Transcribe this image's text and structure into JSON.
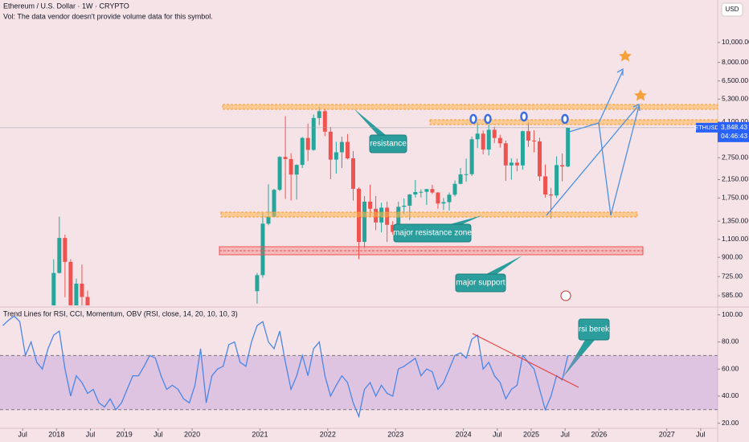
{
  "header": {
    "title": "Ethereum / U.S. Dollar · 1W · CRYPTO",
    "volume_note": "Vol: The data vendor doesn't provide volume data for this symbol.",
    "currency": "USD"
  },
  "chart_data": [
    {
      "type": "candlestick",
      "symbol": "ETHUSD",
      "countdown": "04:46:43",
      "log_scale": true,
      "grid": false,
      "up_color": "#26a69a",
      "down_color": "#ef5350",
      "last_price": {
        "value": 3848.43,
        "label": "3,848.43"
      },
      "x": [
        "2017-12",
        "2018-01",
        "2018-02",
        "2018-03",
        "2018-04",
        "2018-05",
        "2018-06",
        "2020-12",
        "2021-01",
        "2021-02",
        "2021-03",
        "2021-04",
        "2021-05",
        "2021-06",
        "2021-07",
        "2021-08",
        "2021-09",
        "2021-10",
        "2021-11",
        "2021-12",
        "2022-01",
        "2022-02",
        "2022-03",
        "2022-04",
        "2022-05",
        "2022-06",
        "2022-07",
        "2022-08",
        "2022-09",
        "2022-10",
        "2022-11",
        "2022-12",
        "2023-01",
        "2023-02",
        "2023-03",
        "2023-04",
        "2023-05",
        "2023-06",
        "2023-07",
        "2023-08",
        "2023-09",
        "2023-10",
        "2023-11",
        "2023-12",
        "2024-01",
        "2024-02",
        "2024-03",
        "2024-04",
        "2024-05",
        "2024-06",
        "2024-07",
        "2024-08",
        "2024-09",
        "2024-10",
        "2024-11",
        "2024-12",
        "2025-01",
        "2025-02",
        "2025-03",
        "2025-04",
        "2025-05",
        "2025-06",
        "2025-07"
      ],
      "open": [
        440,
        755,
        1118,
        855,
        395,
        670,
        577,
        616,
        737,
        1312,
        1418,
        1918,
        2773,
        2707,
        2275,
        2536,
        3430,
        3000,
        4290,
        4630,
        3680,
        2690,
        2920,
        3280,
        2730,
        1940,
        1070,
        1680,
        1550,
        1330,
        1570,
        1295,
        1195,
        1585,
        1605,
        1820,
        1870,
        1875,
        1935,
        1860,
        1645,
        1670,
        1815,
        2050,
        2280,
        2285,
        3380,
        3600,
        3010,
        3760,
        3430,
        3230,
        2520,
        2600,
        2520,
        3700,
        3330,
        3300,
        2230,
        1820,
        1800,
        2530,
        2490
      ],
      "high": [
        880,
        1420,
        1160,
        880,
        710,
        830,
        620,
        755,
        1475,
        2040,
        1940,
        2800,
        4380,
        2890,
        2550,
        3470,
        4030,
        4460,
        4870,
        4780,
        3880,
        3280,
        3480,
        3580,
        2960,
        1970,
        1790,
        2030,
        1790,
        1660,
        1680,
        1350,
        1680,
        1740,
        1830,
        2140,
        1930,
        1930,
        2030,
        1870,
        1750,
        1860,
        2130,
        2450,
        2720,
        3480,
        4090,
        3730,
        3980,
        3890,
        3560,
        3330,
        2730,
        2720,
        3720,
        4100,
        3740,
        3440,
        2550,
        1960,
        2790,
        2880,
        3860
      ],
      "low": [
        420,
        750,
        575,
        370,
        365,
        520,
        415,
        535,
        715,
        1290,
        1430,
        1890,
        1730,
        1700,
        1720,
        2450,
        2650,
        2970,
        3960,
        3500,
        2160,
        2300,
        2450,
        2700,
        1700,
        880,
        1000,
        1420,
        1220,
        1190,
        1070,
        1160,
        1190,
        1460,
        1370,
        1760,
        1760,
        1620,
        1830,
        1550,
        1530,
        1520,
        1780,
        2040,
        2100,
        2240,
        3060,
        2850,
        2820,
        3240,
        3080,
        2120,
        2150,
        2360,
        2400,
        3100,
        2920,
        2120,
        1760,
        1390,
        1750,
        2110,
        2470
      ],
      "close": [
        755,
        1118,
        855,
        395,
        670,
        577,
        455,
        737,
        1312,
        1418,
        1918,
        2773,
        2707,
        2275,
        2536,
        3430,
        3000,
        4290,
        4630,
        3680,
        2690,
        2920,
        3280,
        2730,
        1940,
        1070,
        1680,
        1550,
        1330,
        1570,
        1295,
        1195,
        1585,
        1605,
        1820,
        1870,
        1875,
        1935,
        1860,
        1645,
        1670,
        1815,
        2050,
        2280,
        2285,
        3380,
        3600,
        3010,
        3760,
        3430,
        3230,
        2520,
        2600,
        2520,
        3700,
        3330,
        3300,
        2230,
        1820,
        1800,
        2530,
        2490,
        3848.43
      ],
      "xlim": [
        "2017-03",
        "2027-10"
      ],
      "xticks": [
        {
          "value": "2017-07",
          "label": "Jul"
        },
        {
          "value": "2018-01",
          "label": "2018"
        },
        {
          "value": "2018-07",
          "label": "Jul"
        },
        {
          "value": "2019-01",
          "label": "2019"
        },
        {
          "value": "2019-07",
          "label": "Jul"
        },
        {
          "value": "2020-01",
          "label": "2020"
        },
        {
          "value": "2021-01",
          "label": "2021"
        },
        {
          "value": "2022-01",
          "label": "2022"
        },
        {
          "value": "2023-01",
          "label": "2023"
        },
        {
          "value": "2024-01",
          "label": "2024"
        },
        {
          "value": "2024-07",
          "label": "Jul"
        },
        {
          "value": "2025-01",
          "label": "2025"
        },
        {
          "value": "2025-07",
          "label": "Jul"
        },
        {
          "value": "2026-01",
          "label": "2026"
        },
        {
          "value": "2027-01",
          "label": "2027"
        },
        {
          "value": "2027-07",
          "label": "Jul"
        }
      ],
      "ylim": [
        525,
        16100
      ],
      "yticks": [
        {
          "value": 10000,
          "label": "10,000.00"
        },
        {
          "value": 8000,
          "label": "8,000.00"
        },
        {
          "value": 6500,
          "label": "6,500.00"
        },
        {
          "value": 5300,
          "label": "5,300.00"
        },
        {
          "value": 4100,
          "label": "4,100.00"
        },
        {
          "value": 2750,
          "label": "2,750.00"
        },
        {
          "value": 2150,
          "label": "2,150.00"
        },
        {
          "value": 1750,
          "label": "1,750.00"
        },
        {
          "value": 1350,
          "label": "1,350.00"
        },
        {
          "value": 1100,
          "label": "1,100.00"
        },
        {
          "value": 900,
          "label": "900.00"
        },
        {
          "value": 725,
          "label": "725.00"
        },
        {
          "value": 585,
          "label": "585.00"
        }
      ],
      "annotations": [
        "resistance",
        "major resistance zone",
        "major support"
      ]
    },
    {
      "type": "line",
      "title": "Trend Lines for RSI, CCI, Momentum, OBV (RSI, close, 14, 20, 10, 10, 3)",
      "color": "#4a86e8",
      "x": [
        "2017-03",
        "2017-04",
        "2017-05",
        "2017-06",
        "2017-07",
        "2017-08",
        "2017-09",
        "2017-10",
        "2017-11",
        "2017-12",
        "2018-01",
        "2018-02",
        "2018-03",
        "2018-04",
        "2018-05",
        "2018-06",
        "2018-07",
        "2018-08",
        "2018-09",
        "2018-10",
        "2018-11",
        "2018-12",
        "2019-01",
        "2019-02",
        "2019-03",
        "2019-04",
        "2019-05",
        "2019-06",
        "2019-07",
        "2019-08",
        "2019-09",
        "2019-10",
        "2019-11",
        "2019-12",
        "2020-01",
        "2020-02",
        "2020-03",
        "2020-04",
        "2020-05",
        "2020-06",
        "2020-07",
        "2020-08",
        "2020-09",
        "2020-10",
        "2020-11",
        "2020-12",
        "2021-01",
        "2021-02",
        "2021-03",
        "2021-04",
        "2021-05",
        "2021-06",
        "2021-07",
        "2021-08",
        "2021-09",
        "2021-10",
        "2021-11",
        "2021-12",
        "2022-01",
        "2022-02",
        "2022-03",
        "2022-04",
        "2022-05",
        "2022-06",
        "2022-07",
        "2022-08",
        "2022-09",
        "2022-10",
        "2022-11",
        "2022-12",
        "2023-01",
        "2023-02",
        "2023-03",
        "2023-04",
        "2023-05",
        "2023-06",
        "2023-07",
        "2023-08",
        "2023-09",
        "2023-10",
        "2023-11",
        "2023-12",
        "2024-01",
        "2024-02",
        "2024-03",
        "2024-04",
        "2024-05",
        "2024-06",
        "2024-07",
        "2024-08",
        "2024-09",
        "2024-10",
        "2024-11",
        "2024-12",
        "2025-01",
        "2025-02",
        "2025-03",
        "2025-04",
        "2025-05",
        "2025-06",
        "2025-07"
      ],
      "values": [
        92,
        96,
        99,
        95,
        70,
        80,
        65,
        60,
        75,
        85,
        88,
        60,
        40,
        55,
        50,
        42,
        45,
        35,
        32,
        38,
        30,
        35,
        45,
        55,
        55,
        62,
        70,
        68,
        55,
        45,
        48,
        45,
        38,
        35,
        48,
        75,
        35,
        55,
        60,
        62,
        78,
        80,
        65,
        62,
        80,
        92,
        95,
        80,
        75,
        88,
        65,
        45,
        55,
        70,
        55,
        75,
        80,
        55,
        40,
        48,
        55,
        50,
        35,
        25,
        45,
        50,
        40,
        48,
        42,
        40,
        60,
        62,
        65,
        68,
        55,
        60,
        58,
        45,
        50,
        60,
        70,
        72,
        68,
        82,
        85,
        60,
        65,
        55,
        50,
        38,
        45,
        48,
        70,
        65,
        60,
        45,
        30,
        40,
        55,
        52,
        70
      ],
      "bands": [
        30,
        70
      ],
      "ylim": [
        18,
        104
      ],
      "yticks": [
        {
          "value": 100,
          "label": "100.00"
        },
        {
          "value": 80,
          "label": "80.00"
        },
        {
          "value": 60,
          "label": "60.00"
        },
        {
          "value": 40,
          "label": "40.00"
        },
        {
          "value": 20,
          "label": "20.00"
        }
      ],
      "annotations": [
        "rsi berek"
      ]
    }
  ]
}
